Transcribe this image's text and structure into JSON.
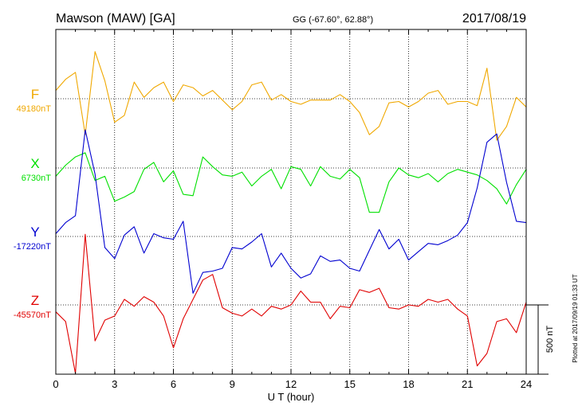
{
  "chart_data": {
    "type": "line",
    "title": "Mawson (MAW)  [GA]",
    "subtitle": "GG (-67.60°,  62.88°)",
    "date": "2017/08/19",
    "xlabel": "U T (hour)",
    "xlim": [
      0,
      24
    ],
    "x_ticks": [
      "0",
      "3",
      "6",
      "9",
      "12",
      "15",
      "18",
      "21",
      "24"
    ],
    "grid": true,
    "scale_bar_label": "500 nT",
    "plotted_note": "Plotted at 2017/09/19 01:33 UT",
    "x": [
      0,
      0.5,
      1,
      1.5,
      2,
      2.5,
      3,
      3.5,
      4,
      4.5,
      5,
      5.5,
      6,
      6.5,
      7,
      7.5,
      8,
      8.5,
      9,
      9.5,
      10,
      10.5,
      11,
      11.5,
      12,
      12.5,
      13,
      13.5,
      14,
      14.5,
      15,
      15.5,
      16,
      16.5,
      17,
      17.5,
      18,
      18.5,
      19,
      19.5,
      20,
      20.5,
      21,
      21.5,
      22,
      22.5,
      23,
      23.5,
      24
    ],
    "series": [
      {
        "name": "F",
        "baseline_label": "49180nT",
        "color": "#f0a800",
        "values": [
          60,
          140,
          190,
          -260,
          340,
          130,
          -170,
          -120,
          120,
          10,
          80,
          120,
          -20,
          100,
          80,
          20,
          60,
          -10,
          -80,
          -20,
          100,
          120,
          -10,
          30,
          -20,
          -40,
          -10,
          -10,
          -10,
          30,
          -20,
          -100,
          -260,
          -200,
          -30,
          -20,
          -60,
          -20,
          40,
          60,
          -40,
          -20,
          -20,
          -50,
          220,
          -300,
          -200,
          10,
          -60
        ]
      },
      {
        "name": "X",
        "baseline_label": "6730nT",
        "color": "#00e000",
        "values": [
          -60,
          20,
          80,
          110,
          -90,
          -60,
          -240,
          -210,
          -170,
          -10,
          40,
          -100,
          -20,
          -190,
          -200,
          80,
          10,
          -50,
          -60,
          -30,
          -130,
          -60,
          -10,
          -150,
          10,
          -10,
          -130,
          10,
          -60,
          -80,
          -10,
          -70,
          -320,
          -320,
          -100,
          0,
          -50,
          -70,
          -40,
          -100,
          -40,
          -10,
          -30,
          -50,
          -90,
          -150,
          -260,
          -120,
          -10
        ]
      },
      {
        "name": "Y",
        "baseline_label": "-17220nT",
        "color": "#0000d0",
        "values": [
          20,
          100,
          150,
          770,
          450,
          -80,
          -160,
          10,
          70,
          -120,
          20,
          -10,
          -20,
          110,
          -410,
          -260,
          -250,
          -230,
          -80,
          -90,
          -40,
          20,
          -220,
          -120,
          -230,
          -300,
          -270,
          -140,
          -180,
          -170,
          -230,
          -250,
          -100,
          50,
          -90,
          -20,
          -170,
          -110,
          -50,
          -60,
          -30,
          10,
          100,
          350,
          680,
          740,
          390,
          110,
          100
        ]
      },
      {
        "name": "Z",
        "baseline_label": "-45570nT",
        "color": "#e00000",
        "values": [
          -50,
          -120,
          -510,
          510,
          -260,
          -110,
          -80,
          40,
          -10,
          60,
          20,
          -80,
          -310,
          -100,
          40,
          180,
          220,
          -20,
          -60,
          -80,
          -30,
          -80,
          -10,
          -30,
          0,
          100,
          20,
          20,
          -100,
          -10,
          -20,
          110,
          90,
          120,
          -20,
          -30,
          0,
          -10,
          40,
          20,
          40,
          -30,
          -80,
          -440,
          -350,
          -120,
          -100,
          -200,
          20
        ]
      }
    ]
  }
}
